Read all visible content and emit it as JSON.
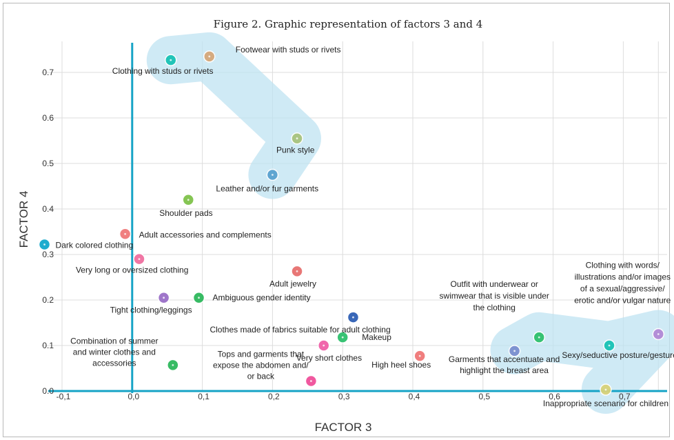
{
  "chart_data": {
    "type": "scatter",
    "title": "Figure 2. Graphic representation of factors 3 and 4",
    "xlabel": "FACTOR 3",
    "ylabel": "FACTOR 4",
    "xlim": [
      -0.1,
      0.75
    ],
    "ylim": [
      0.0,
      0.73
    ],
    "x_ticks": [
      "-0,1",
      "0,0",
      "0,1",
      "0,2",
      "0,3",
      "0,4",
      "0,5",
      "0,6",
      "0,7"
    ],
    "x_tick_values": [
      -0.1,
      0.0,
      0.1,
      0.2,
      0.3,
      0.4,
      0.5,
      0.6,
      0.7
    ],
    "y_ticks": [
      "0.0",
      "0.1",
      "0.2",
      "0.3",
      "0.4",
      "0.5",
      "0.6",
      "0.7"
    ],
    "y_tick_values": [
      0.0,
      0.1,
      0.2,
      0.3,
      0.4,
      0.5,
      0.6,
      0.7
    ],
    "grid": true,
    "clusters": [
      {
        "color": "#bfe3f2",
        "points": [
          [
            0.055,
            0.727
          ],
          [
            0.11,
            0.735
          ],
          [
            0.235,
            0.555
          ],
          [
            0.2,
            0.475
          ]
        ]
      },
      {
        "color": "#bfe3f2",
        "points": [
          [
            0.545,
            0.09
          ],
          [
            0.58,
            0.12
          ],
          [
            0.68,
            0.1
          ],
          [
            0.75,
            0.125
          ],
          [
            0.675,
            0.003
          ]
        ]
      }
    ],
    "points": [
      {
        "x": 0.055,
        "y": 0.727,
        "label": "Clothing with studs or rivets",
        "color": "#19c2b5"
      },
      {
        "x": 0.11,
        "y": 0.735,
        "label": "Footwear with studs or rivets",
        "color": "#d6a87a"
      },
      {
        "x": 0.235,
        "y": 0.555,
        "label": "Punk style",
        "color": "#a9c47f"
      },
      {
        "x": 0.2,
        "y": 0.475,
        "label": "Leather and/or fur garments",
        "color": "#5aa2d0"
      },
      {
        "x": 0.08,
        "y": 0.42,
        "label": "Shoulder pads",
        "color": "#7fc24a"
      },
      {
        "x": -0.01,
        "y": 0.345,
        "label": "Adult accessories and complements",
        "color": "#f07a7a"
      },
      {
        "x": -0.125,
        "y": 0.322,
        "label": "Dark colored clothing",
        "color": "#12a8cc"
      },
      {
        "x": 0.01,
        "y": 0.29,
        "label": "Very long or oversized clothing",
        "color": "#f06fa0"
      },
      {
        "x": 0.235,
        "y": 0.263,
        "label": "Adult jewelry",
        "color": "#e7706f"
      },
      {
        "x": 0.045,
        "y": 0.205,
        "label": "Tight clothing/leggings",
        "color": "#9a6fc8"
      },
      {
        "x": 0.095,
        "y": 0.205,
        "label": "Ambiguous gender identity",
        "color": "#2eb85c"
      },
      {
        "x": 0.315,
        "y": 0.162,
        "label": "Clothes made of fabrics suitable for adult clothing",
        "color": "#2f5fb5"
      },
      {
        "x": 0.3,
        "y": 0.118,
        "label": "Makeup",
        "color": "#2ec06d"
      },
      {
        "x": 0.273,
        "y": 0.1,
        "label": "Very short clothes",
        "color": "#f05fa8"
      },
      {
        "x": 0.41,
        "y": 0.077,
        "label": "High heel shoes",
        "color": "#f07878"
      },
      {
        "x": 0.058,
        "y": 0.057,
        "label": "Combination of summer and winter clothes and accessories",
        "color": "#2eb85c"
      },
      {
        "x": 0.255,
        "y": 0.022,
        "label": "Tops and garments that expose the abdomen and/ or back",
        "color": "#f0509a"
      },
      {
        "x": 0.545,
        "y": 0.088,
        "label": "Garments that accentuate and highlight the breast area",
        "color": "#7a8fd0"
      },
      {
        "x": 0.58,
        "y": 0.118,
        "label": "Outfit with underwear or swimwear that is visible under the clothing",
        "color": "#2ec06d"
      },
      {
        "x": 0.68,
        "y": 0.1,
        "label": "Sexy/seductive posture/gesture",
        "color": "#19c2b5"
      },
      {
        "x": 0.75,
        "y": 0.125,
        "label": "Clothing with words/ illustrations and/or images of a sexual/aggressive/ erotic and/or vulgar nature",
        "color": "#b28ad6"
      },
      {
        "x": 0.675,
        "y": 0.003,
        "label": "Inappropriate scenario for children",
        "color": "#d8d27a"
      }
    ]
  }
}
